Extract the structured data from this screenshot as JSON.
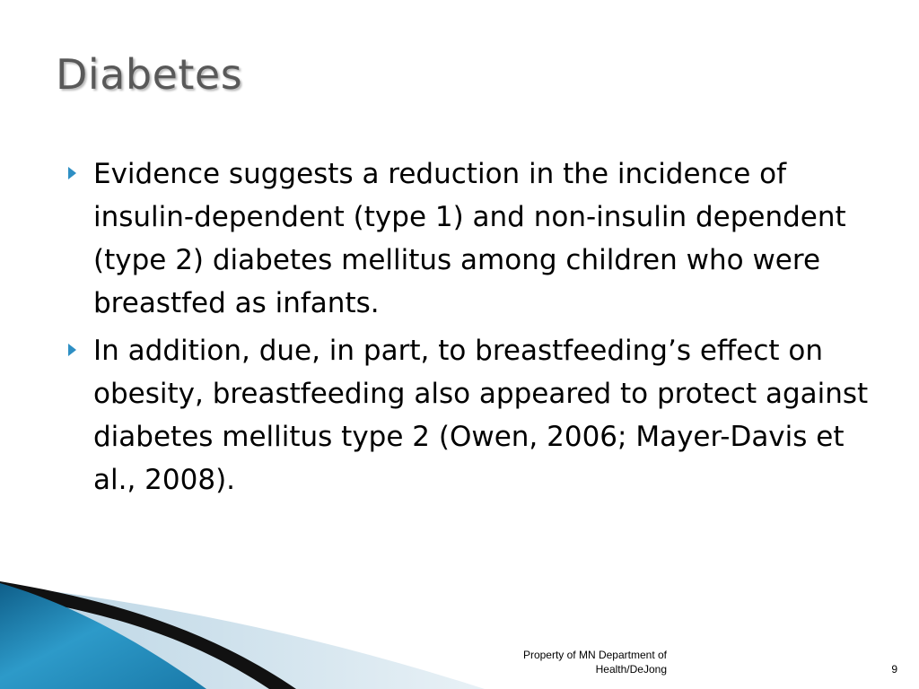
{
  "slide": {
    "title": "Diabetes",
    "bullets": [
      "Evidence suggests a reduction in the incidence of insulin-dependent (type 1) and non-insulin dependent (type 2) diabetes mellitus among children who were breastfed as infants.",
      "In addition, due, in part, to breastfeeding’s effect on obesity, breastfeeding also appeared to protect against diabetes mellitus type 2 (Owen, 2006; Mayer-Davis et al., 2008)."
    ],
    "bullet_icon": "triangle-bullet-icon",
    "footer": "Property of MN Department of Health/DeJong",
    "slide_number": "9"
  },
  "colors": {
    "title": "#595959",
    "bullet_accent": "#2e8fc4",
    "swoosh_blue": "#1e7fae",
    "swoosh_light": "#d6e6ef"
  }
}
